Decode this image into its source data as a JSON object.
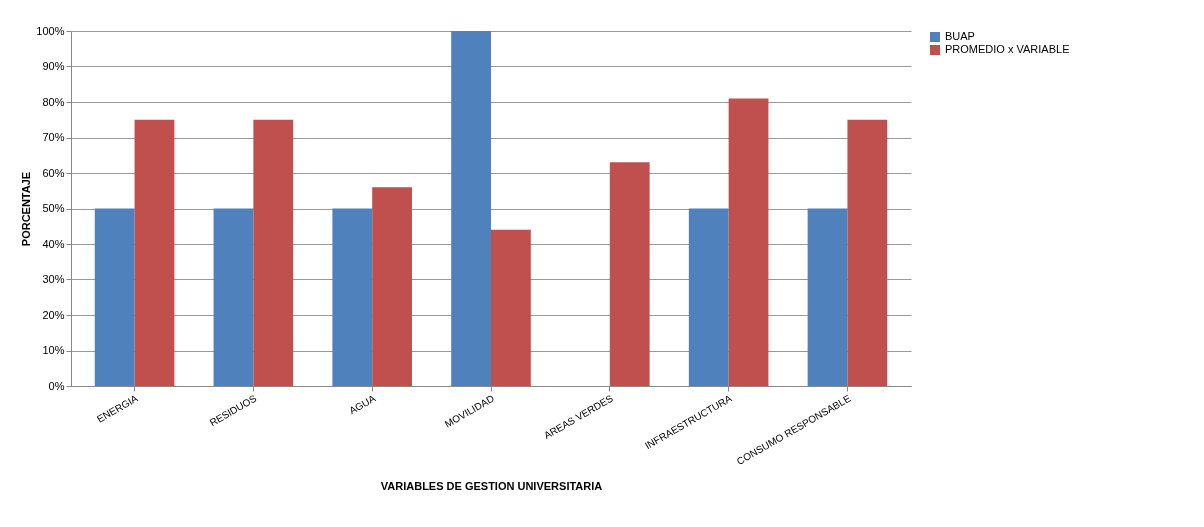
{
  "chart_data": {
    "type": "bar",
    "xlabel": "VARIABLES DE GESTION UNIVERSITARIA",
    "ylabel": "PORCENTAJE",
    "categories": [
      "ENERGIA",
      "RESIDUOS",
      "AGUA",
      "MOVILIDAD",
      "AREAS VERDES",
      "INFRAESTRUCTURA",
      "CONSUMO RESPONSABLE"
    ],
    "series": [
      {
        "name": "BUAP",
        "color": "#4f81bd",
        "values": [
          50,
          50,
          50,
          100,
          0,
          50,
          50
        ]
      },
      {
        "name": "PROMEDIO  x VARIABLE",
        "color": "#c0504d",
        "values": [
          75,
          75,
          56,
          44,
          63,
          81,
          75
        ]
      }
    ],
    "ylim": [
      0,
      100
    ],
    "yticks": [
      {
        "value": 0,
        "label": "0%"
      },
      {
        "value": 10,
        "label": "10%"
      },
      {
        "value": 20,
        "label": "20%"
      },
      {
        "value": 30,
        "label": "30%"
      },
      {
        "value": 40,
        "label": "40%"
      },
      {
        "value": 50,
        "label": "50%"
      },
      {
        "value": 60,
        "label": "60%"
      },
      {
        "value": 70,
        "label": "70%"
      },
      {
        "value": 80,
        "label": "80%"
      },
      {
        "value": 90,
        "label": "90%"
      },
      {
        "value": 100,
        "label": "100%"
      }
    ],
    "grid": "y",
    "legend": "right"
  }
}
